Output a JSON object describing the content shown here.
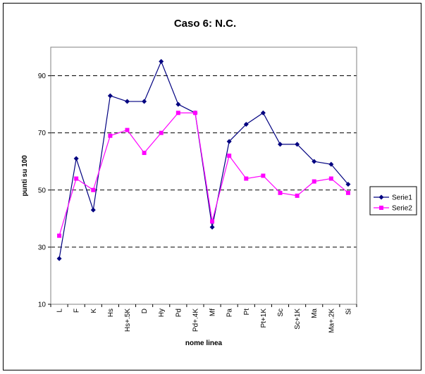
{
  "chart_data": {
    "type": "line",
    "title": "Caso 6: N.C.",
    "xlabel": "nome linea",
    "ylabel": "punti su 100",
    "ylim": [
      10,
      100
    ],
    "yticks": [
      10,
      30,
      50,
      70,
      90
    ],
    "grid": "horizontal dashed",
    "legend": "right",
    "categories": [
      "L",
      "F",
      "K",
      "Hs",
      "Hs+.5K",
      "D",
      "Hy",
      "Pd",
      "Pd+.4K",
      "Mf",
      "Pa",
      "Pt",
      "Pt+1K",
      "Sc",
      "Sc+1K",
      "Ma",
      "Ma+.2K",
      "Si"
    ],
    "series": [
      {
        "name": "Serie1",
        "color": "#000080",
        "marker": "diamond",
        "values": [
          26,
          61,
          43,
          83,
          81,
          81,
          95,
          80,
          77,
          37,
          67,
          73,
          77,
          66,
          66,
          60,
          59,
          52
        ]
      },
      {
        "name": "Serie2",
        "color": "#ff00ff",
        "marker": "square",
        "values": [
          34,
          54,
          50,
          69,
          71,
          63,
          70,
          77,
          77,
          39,
          62,
          54,
          55,
          49,
          48,
          53,
          54,
          49
        ]
      }
    ]
  }
}
